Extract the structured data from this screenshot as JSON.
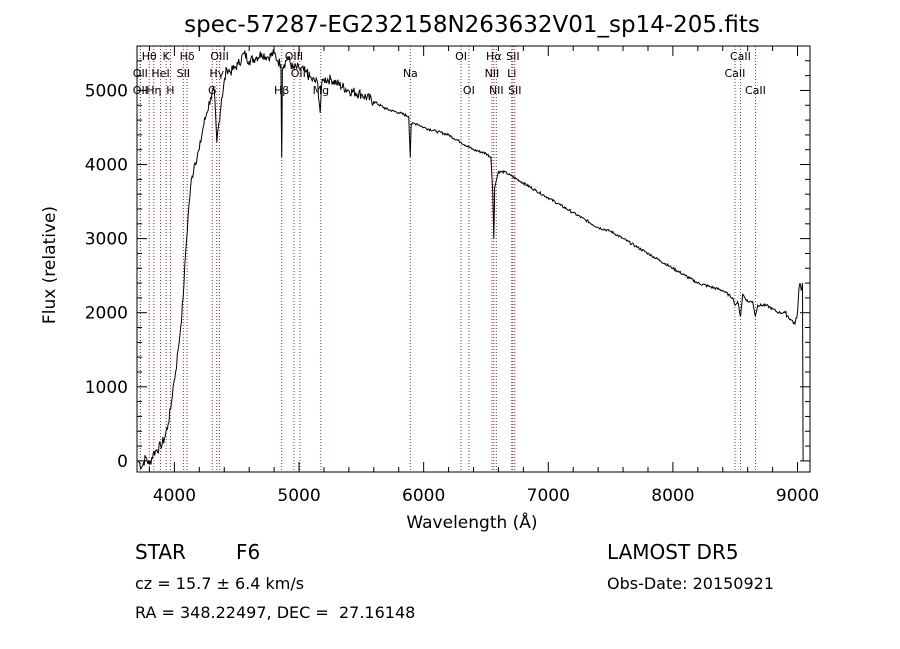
{
  "chart_data": {
    "type": "line",
    "title": "spec-57287-EG232158N263632V01_sp14-205.fits",
    "xlabel": "Wavelength (Å)",
    "ylabel": "Flux (relative)",
    "xlim": [
      3700,
      9100
    ],
    "ylim": [
      -150,
      5600
    ],
    "x_ticks": [
      4000,
      5000,
      6000,
      7000,
      8000,
      9000
    ],
    "y_ticks": [
      0,
      1000,
      2000,
      3000,
      4000,
      5000
    ],
    "grid": false,
    "series": [
      {
        "x": [
          3710,
          3740,
          3770,
          3800,
          3830,
          3860,
          3890,
          3920,
          3950,
          3970,
          3990,
          4010,
          4030,
          4050,
          4070,
          4090,
          4110,
          4130,
          4160,
          4200,
          4230,
          4260,
          4290,
          4320,
          4340,
          4380,
          4420,
          4450,
          4480,
          4510,
          4560,
          4600,
          4660,
          4700,
          4750,
          4800,
          4830,
          4855,
          4861,
          4867,
          4880,
          4910,
          4950,
          5000,
          5050,
          5100,
          5150,
          5170,
          5180,
          5200,
          5260,
          5300,
          5400,
          5500,
          5600,
          5700,
          5800,
          5880,
          5893,
          5900,
          5950,
          6000,
          6100,
          6200,
          6300,
          6400,
          6500,
          6540,
          6555,
          6563,
          6570,
          6600,
          6650,
          6700,
          6800,
          6900,
          7000,
          7100,
          7200,
          7300,
          7400,
          7500,
          7600,
          7700,
          7800,
          7900,
          8000,
          8100,
          8200,
          8300,
          8400,
          8480,
          8500,
          8520,
          8542,
          8560,
          8600,
          8640,
          8662,
          8680,
          8750,
          8800,
          8850,
          8900,
          8950,
          8980,
          9000,
          9010,
          9020,
          9030,
          9040,
          9045
        ],
        "values": [
          0,
          -80,
          50,
          -50,
          100,
          150,
          200,
          300,
          500,
          700,
          1000,
          1200,
          1500,
          1800,
          2200,
          2800,
          3300,
          3700,
          4000,
          4200,
          4500,
          4700,
          4900,
          5000,
          4300,
          4900,
          5300,
          5250,
          5300,
          5350,
          5500,
          5400,
          5450,
          5500,
          5450,
          5500,
          5400,
          5350,
          4100,
          5300,
          5350,
          5450,
          5300,
          5300,
          5250,
          5150,
          5100,
          4700,
          5050,
          5150,
          5150,
          5100,
          5000,
          4950,
          4850,
          4750,
          4700,
          4650,
          4100,
          4550,
          4550,
          4500,
          4450,
          4400,
          4300,
          4200,
          4150,
          4100,
          3600,
          3000,
          3700,
          3900,
          3900,
          3850,
          3750,
          3650,
          3550,
          3450,
          3350,
          3250,
          3150,
          3100,
          3000,
          2900,
          2800,
          2700,
          2600,
          2500,
          2400,
          2350,
          2300,
          2200,
          2100,
          2150,
          1950,
          2250,
          2150,
          2150,
          1950,
          2100,
          2100,
          2050,
          2000,
          2000,
          1900,
          1850,
          2000,
          2300,
          2400,
          2300,
          2400,
          0
        ]
      }
    ],
    "spectral_lines": [
      {
        "label": "Hθ",
        "x": 3798,
        "row": 0
      },
      {
        "label": "OII",
        "x": 3727,
        "row": 1
      },
      {
        "label": "HeI",
        "x": 3889,
        "row": 1
      },
      {
        "label": "OII",
        "x": 3727,
        "row": 2
      },
      {
        "label": "Hη",
        "x": 3835,
        "row": 2
      },
      {
        "label": "K",
        "x": 3934,
        "row": 0
      },
      {
        "label": "H",
        "x": 3968,
        "row": 2
      },
      {
        "label": "SII",
        "x": 4072,
        "row": 1
      },
      {
        "label": "Hδ",
        "x": 4102,
        "row": 0
      },
      {
        "label": "OIII",
        "x": 4363,
        "row": 0
      },
      {
        "label": "Hγ",
        "x": 4340,
        "row": 1
      },
      {
        "label": "G",
        "x": 4304,
        "row": 2
      },
      {
        "label": "Hβ",
        "x": 4861,
        "row": 2
      },
      {
        "label": "OIII",
        "x": 4959,
        "row": 0
      },
      {
        "label": "OIII",
        "x": 5007,
        "row": 1
      },
      {
        "label": "Mg",
        "x": 5175,
        "row": 2
      },
      {
        "label": "Na",
        "x": 5893,
        "row": 1
      },
      {
        "label": "OI",
        "x": 6300,
        "row": 0
      },
      {
        "label": "OI",
        "x": 6363,
        "row": 2
      },
      {
        "label": "Hα",
        "x": 6563,
        "row": 0
      },
      {
        "label": "NII",
        "x": 6548,
        "row": 1
      },
      {
        "label": "NII",
        "x": 6583,
        "row": 2
      },
      {
        "label": "SII",
        "x": 6716,
        "row": 0
      },
      {
        "label": "Li",
        "x": 6707,
        "row": 1
      },
      {
        "label": "SII",
        "x": 6731,
        "row": 2
      },
      {
        "label": "CaII",
        "x": 8542,
        "row": 0
      },
      {
        "label": "CaII",
        "x": 8498,
        "row": 1
      },
      {
        "label": "CaII",
        "x": 8662,
        "row": 2
      }
    ]
  },
  "info": {
    "object_class": "STAR",
    "subclass": "F6",
    "survey": "LAMOST DR5",
    "redshift": "cz = 15.7 ± 6.4 km/s",
    "obs_date": "Obs-Date: 20150921",
    "coords": "RA = 348.22497, DEC =  27.16148"
  }
}
